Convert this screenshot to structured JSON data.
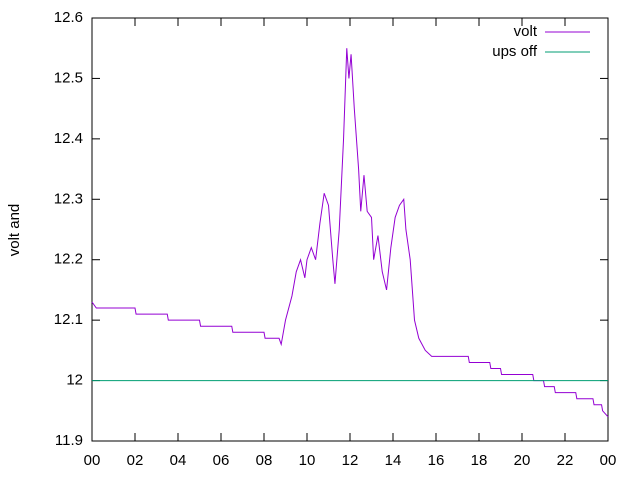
{
  "chart_data": {
    "type": "line",
    "ylabel": "volt and",
    "xlim": [
      0,
      24
    ],
    "xticks": [
      {
        "value": 0,
        "label": "00"
      },
      {
        "value": 2,
        "label": "02"
      },
      {
        "value": 4,
        "label": "04"
      },
      {
        "value": 6,
        "label": "06"
      },
      {
        "value": 8,
        "label": "08"
      },
      10,
      12,
      14,
      16,
      18,
      20,
      22,
      {
        "value": 24,
        "label": "00"
      }
    ],
    "ylim": [
      11.9,
      12.6
    ],
    "yticks": [
      11.9,
      12,
      12.1,
      12.2,
      12.3,
      12.4,
      12.5,
      12.6
    ],
    "legend": "top-right",
    "series": [
      {
        "name": "volt",
        "color": "#9400d3",
        "x": [
          0,
          0.2,
          2.0,
          2.05,
          3.5,
          3.55,
          5.0,
          5.05,
          6.5,
          6.55,
          8.0,
          8.05,
          8.7,
          8.8,
          9.0,
          9.3,
          9.5,
          9.7,
          9.9,
          10.0,
          10.2,
          10.4,
          10.6,
          10.8,
          11.0,
          11.2,
          11.3,
          11.5,
          11.7,
          11.85,
          11.95,
          12.05,
          12.2,
          12.4,
          12.5,
          12.65,
          12.8,
          13.0,
          13.1,
          13.3,
          13.5,
          13.7,
          13.9,
          14.1,
          14.3,
          14.5,
          14.6,
          14.8,
          15.0,
          15.2,
          15.5,
          15.8,
          17.5,
          17.55,
          18.5,
          18.55,
          19.0,
          19.05,
          20.5,
          20.55,
          21.0,
          21.05,
          21.5,
          21.55,
          22.5,
          22.55,
          23.3,
          23.35,
          23.7,
          23.75,
          24.0
        ],
        "values": [
          12.13,
          12.12,
          12.12,
          12.11,
          12.11,
          12.1,
          12.1,
          12.09,
          12.09,
          12.08,
          12.08,
          12.07,
          12.07,
          12.06,
          12.1,
          12.14,
          12.18,
          12.2,
          12.17,
          12.2,
          12.22,
          12.2,
          12.26,
          12.31,
          12.29,
          12.2,
          12.16,
          12.25,
          12.4,
          12.55,
          12.5,
          12.54,
          12.45,
          12.35,
          12.28,
          12.34,
          12.28,
          12.27,
          12.2,
          12.24,
          12.18,
          12.15,
          12.22,
          12.27,
          12.29,
          12.3,
          12.25,
          12.2,
          12.1,
          12.07,
          12.05,
          12.04,
          12.04,
          12.03,
          12.03,
          12.02,
          12.02,
          12.01,
          12.01,
          12.0,
          12.0,
          11.99,
          11.99,
          11.98,
          11.98,
          11.97,
          11.97,
          11.96,
          11.96,
          11.95,
          11.94
        ]
      },
      {
        "name": "ups off",
        "color": "#009e73",
        "x": [
          0,
          24
        ],
        "values": [
          12,
          12
        ]
      }
    ]
  }
}
